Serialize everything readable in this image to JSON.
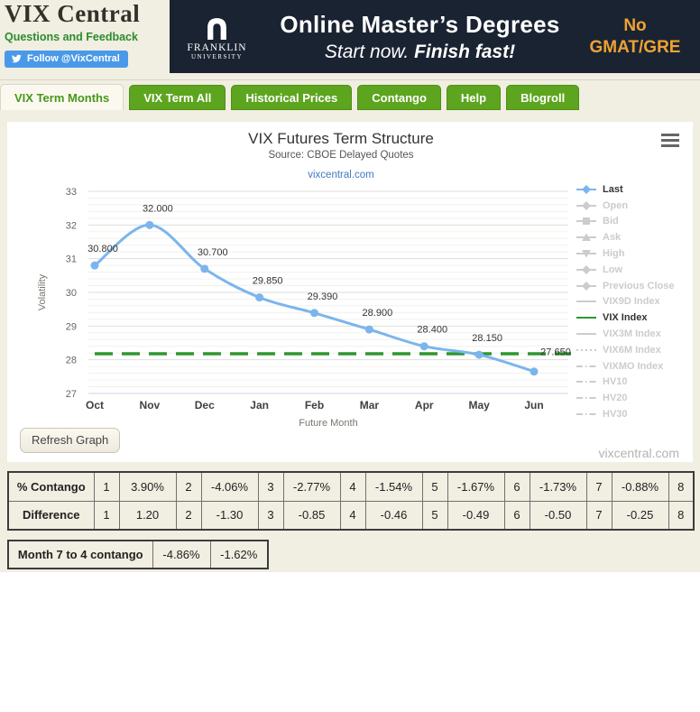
{
  "header": {
    "logo": "VIX Central",
    "feedback_link": "Questions and Feedback",
    "twitter_button": "Follow @VixCentral"
  },
  "ad": {
    "brand_line1": "FRANKLIN",
    "brand_line2": "UNIVERSITY",
    "headline": "Online Master’s Degrees",
    "subline_regular": "Start now. ",
    "subline_bold": "Finish fast!",
    "cta_line1": "No",
    "cta_line2": "GMAT/GRE",
    "bg_color": "#1a2331",
    "accent_color": "#f0a233"
  },
  "tabs": [
    {
      "label": "VIX Term Months",
      "active": true
    },
    {
      "label": "VIX Term All",
      "active": false
    },
    {
      "label": "Historical Prices",
      "active": false
    },
    {
      "label": "Contango",
      "active": false
    },
    {
      "label": "Help",
      "active": false
    },
    {
      "label": "Blogroll",
      "active": false
    }
  ],
  "chart": {
    "title": "VIX Futures Term Structure",
    "subtitle": "Source: CBOE Delayed Quotes",
    "link": "vixcentral.com",
    "refresh_button": "Refresh Graph",
    "watermark": "vixcentral.com"
  },
  "chart_data": {
    "type": "line",
    "title": "VIX Futures Term Structure",
    "subtitle": "Source: CBOE Delayed Quotes",
    "categories": [
      "Oct",
      "Nov",
      "Dec",
      "Jan",
      "Feb",
      "Mar",
      "Apr",
      "May",
      "Jun"
    ],
    "series": [
      {
        "name": "Last",
        "values": [
          30.8,
          32.0,
          30.7,
          29.85,
          29.39,
          28.9,
          28.4,
          28.15,
          27.65
        ],
        "labels": [
          "30.800",
          "32.000",
          "30.700",
          "29.850",
          "29.390",
          "28.900",
          "28.400",
          "28.150",
          "27.650"
        ],
        "color": "#7cb5ec"
      },
      {
        "name": "VIX Index",
        "type": "hline",
        "value": 28.18,
        "color": "#2f962f",
        "dash": "20 10"
      }
    ],
    "xlabel": "Future Month",
    "ylabel": "Volatility",
    "ylim": [
      27,
      33
    ],
    "yticks": [
      27,
      28,
      29,
      30,
      31,
      32,
      33
    ],
    "minor_step": 0.2,
    "grid": true,
    "legend_position": "right",
    "legend": [
      {
        "label": "Last",
        "marker": "diamond-line",
        "active": true,
        "color": "#7cb5ec"
      },
      {
        "label": "Open",
        "marker": "diamond-line",
        "active": false
      },
      {
        "label": "Bid",
        "marker": "square-line",
        "active": false
      },
      {
        "label": "Ask",
        "marker": "triangle-line",
        "active": false
      },
      {
        "label": "High",
        "marker": "triangle-down-line",
        "active": false
      },
      {
        "label": "Low",
        "marker": "diamond-line",
        "active": false
      },
      {
        "label": "Previous Close",
        "marker": "diamond-line",
        "active": false
      },
      {
        "label": "VIX9D Index",
        "marker": "line",
        "active": false
      },
      {
        "label": "VIX Index",
        "marker": "line",
        "active": true,
        "color": "#2f962f"
      },
      {
        "label": "VIX3M Index",
        "marker": "line",
        "active": false
      },
      {
        "label": "VIX6M Index",
        "marker": "dotted",
        "active": false
      },
      {
        "label": "VIXMO Index",
        "marker": "dashdot",
        "active": false
      },
      {
        "label": "HV10",
        "marker": "dashdot",
        "active": false
      },
      {
        "label": "HV20",
        "marker": "dashdot",
        "active": false
      },
      {
        "label": "HV30",
        "marker": "dashdot",
        "active": false
      }
    ],
    "inactive_color": "#cccccc"
  },
  "tables": {
    "rows": [
      {
        "label": "% Contango",
        "cells": [
          "1",
          "3.90%",
          "2",
          "-4.06%",
          "3",
          "-2.77%",
          "4",
          "-1.54%",
          "5",
          "-1.67%",
          "6",
          "-1.73%",
          "7",
          "-0.88%",
          "8"
        ]
      },
      {
        "label": "Difference",
        "cells": [
          "1",
          "1.20",
          "2",
          "-1.30",
          "3",
          "-0.85",
          "4",
          "-0.46",
          "5",
          "-0.49",
          "6",
          "-0.50",
          "7",
          "-0.25",
          "8"
        ]
      }
    ],
    "summary": {
      "label": "Month 7 to 4 contango",
      "values": [
        "-4.86%",
        "-1.62%"
      ]
    }
  }
}
